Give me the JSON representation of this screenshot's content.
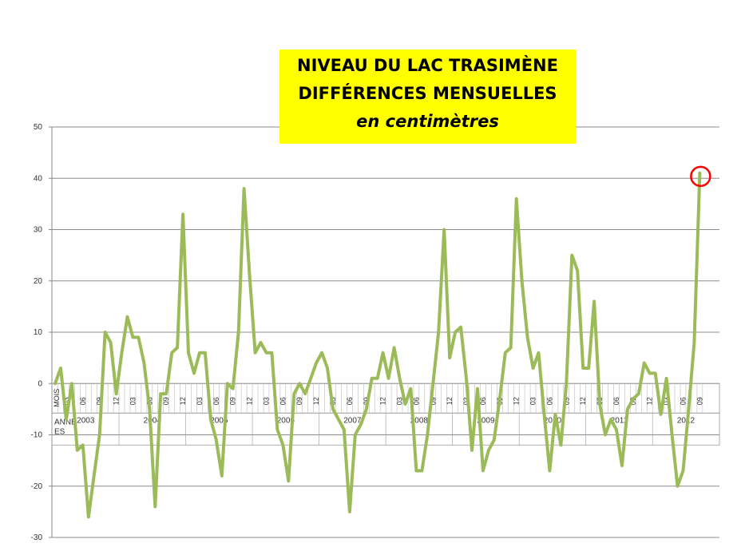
{
  "chart_data": {
    "type": "line",
    "title_lines": [
      "NIVEAU DU LAC TRASIMÈNE",
      "DIFFÉRENCES MENSUELLES",
      "en centimètres"
    ],
    "ylim": [
      -30,
      50
    ],
    "y_ticks": [
      50,
      40,
      30,
      20,
      10,
      0,
      -10,
      -20,
      -30
    ],
    "month_axis_label": "MOIS",
    "year_axis_label": "ANNEES",
    "month_ticks": [
      "03",
      "06",
      "09",
      "12"
    ],
    "years": [
      "2003",
      "2004",
      "2005",
      "2006",
      "2007",
      "2008",
      "2009",
      "2010",
      "2011",
      "2012"
    ],
    "series": [
      {
        "color": "#9bbb59",
        "x_start": "2003-01",
        "values": [
          0,
          3,
          -7,
          0,
          -13,
          -12,
          -26,
          -18,
          -10,
          10,
          8,
          -2,
          6,
          13,
          9,
          9,
          4,
          -5,
          -24,
          -2,
          -2,
          6,
          7,
          33,
          6,
          2,
          6,
          6,
          -7,
          -11,
          -18,
          0,
          -1,
          10,
          38,
          21,
          6,
          8,
          6,
          6,
          -9,
          -12,
          -19,
          -2,
          0,
          -2,
          1,
          4,
          6,
          3,
          -5,
          -7,
          -9,
          -25,
          -10,
          -8,
          -5,
          1,
          1,
          6,
          1,
          7,
          1,
          -4,
          -1,
          -17,
          -17,
          -10,
          0,
          10,
          30,
          5,
          10,
          11,
          1,
          -13,
          -1,
          -17,
          -13,
          -11,
          -3,
          6,
          7,
          36,
          20,
          9,
          3,
          6,
          -6,
          -17,
          -6,
          -12,
          0,
          25,
          22,
          3,
          3,
          16,
          -4,
          -10,
          -7,
          -9,
          -16,
          -5,
          -3,
          -2,
          4,
          2,
          2,
          -6,
          1,
          -10,
          -20,
          -17,
          -5,
          8,
          41
        ]
      }
    ],
    "highlight": {
      "index": 116,
      "value": 41,
      "color": "#ff0000"
    }
  }
}
